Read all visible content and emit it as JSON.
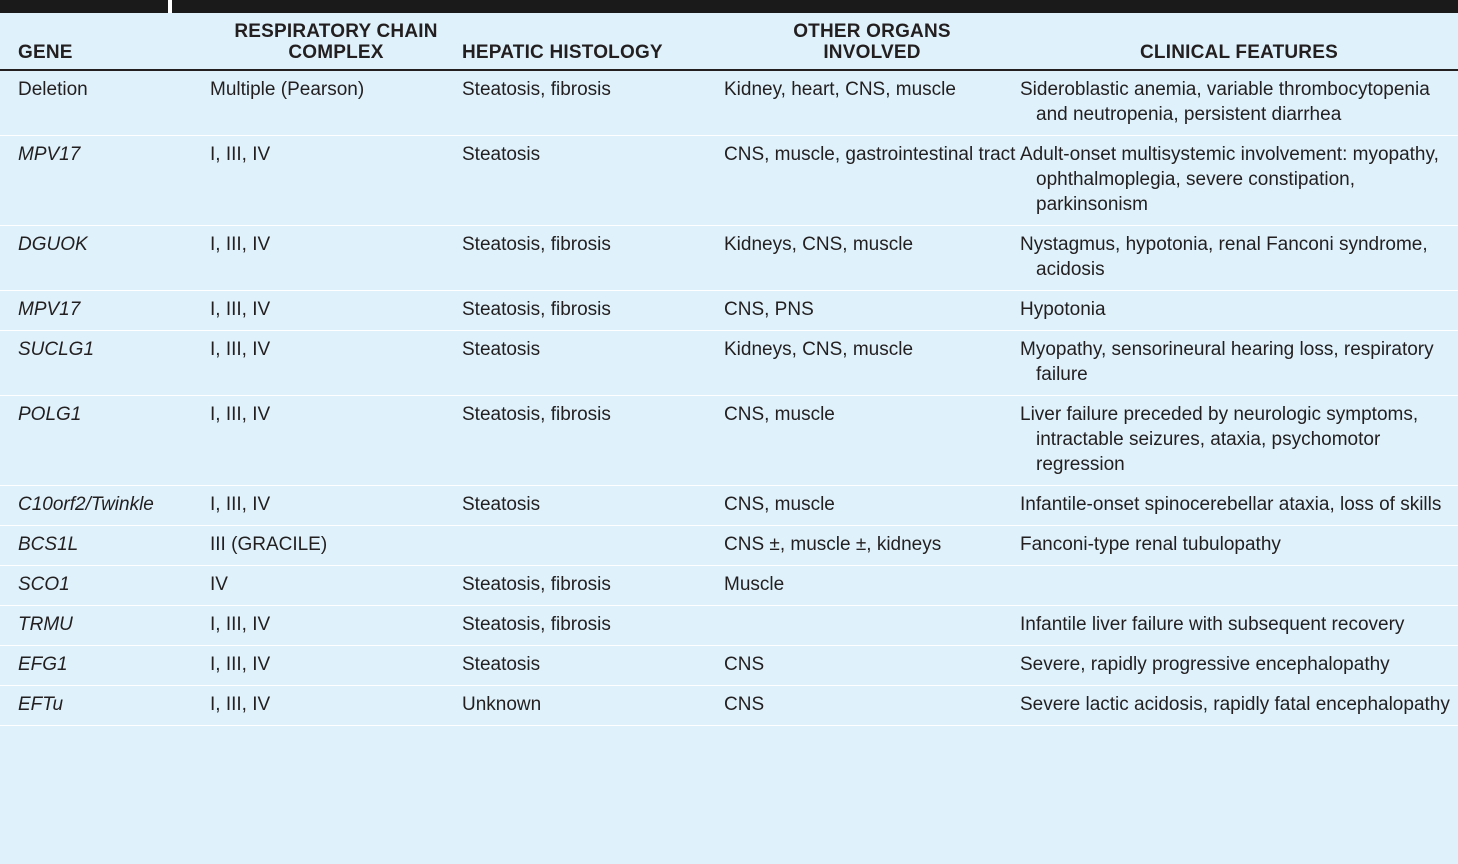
{
  "table": {
    "headers": {
      "gene": "GENE",
      "complex_line1": "RESPIRATORY CHAIN",
      "complex_line2": "COMPLEX",
      "histology": "HEPATIC HISTOLOGY",
      "organs_line1": "OTHER ORGANS",
      "organs_line2": "INVOLVED",
      "features": "CLINICAL FEATURES"
    },
    "rows": [
      {
        "gene": "Deletion",
        "complex": "Multiple (Pearson)",
        "histology": "Steatosis, fibrosis",
        "organs": "Kidney, heart, CNS, muscle",
        "features": "Sideroblastic anemia, variable thrombocytopenia and neutropenia, persistent diarrhea"
      },
      {
        "gene": "MPV17",
        "complex": "I, III, IV",
        "histology": "Steatosis",
        "organs": "CNS, muscle, gastrointestinal tract",
        "features": "Adult-onset multisystemic involvement: myopathy, ophthalmoplegia, severe constipation, parkinsonism"
      },
      {
        "gene": "DGUOK",
        "complex": "I, III, IV",
        "histology": "Steatosis, fibrosis",
        "organs": "Kidneys, CNS, muscle",
        "features": "Nystagmus, hypotonia, renal Fanconi syndrome, acidosis"
      },
      {
        "gene": "MPV17",
        "complex": "I, III, IV",
        "histology": "Steatosis, fibrosis",
        "organs": "CNS, PNS",
        "features": "Hypotonia"
      },
      {
        "gene": "SUCLG1",
        "complex": "I, III, IV",
        "histology": "Steatosis",
        "organs": "Kidneys, CNS, muscle",
        "features": "Myopathy, sensorineural hearing loss, respiratory failure"
      },
      {
        "gene": "POLG1",
        "complex": "I, III, IV",
        "histology": "Steatosis, fibrosis",
        "organs": "CNS, muscle",
        "features": "Liver failure preceded by neurologic symptoms, intractable seizures, ataxia, psychomotor regression"
      },
      {
        "gene": "C10orf2/Twinkle",
        "complex": "I, III, IV",
        "histology": "Steatosis",
        "organs": "CNS, muscle",
        "features": "Infantile-onset spinocerebellar ataxia, loss of skills"
      },
      {
        "gene": "BCS1L",
        "complex": "III (GRACILE)",
        "histology": "",
        "organs": "CNS ±, muscle ±, kidneys",
        "features": "Fanconi-type renal tubulopathy"
      },
      {
        "gene": "SCO1",
        "complex": "IV",
        "histology": "Steatosis, fibrosis",
        "organs": "Muscle",
        "features": ""
      },
      {
        "gene": "TRMU",
        "complex": "I, III, IV",
        "histology": "Steatosis, fibrosis",
        "organs": "",
        "features": "Infantile liver failure with subsequent recovery"
      },
      {
        "gene": "EFG1",
        "complex": "I, III, IV",
        "histology": "Steatosis",
        "organs": "CNS",
        "features": "Severe, rapidly progressive encephalopathy"
      },
      {
        "gene": "EFTu",
        "complex": "I, III, IV",
        "histology": "Unknown",
        "organs": "CNS",
        "features": "Severe lactic acidosis, rapidly fatal encephalopathy"
      }
    ]
  }
}
